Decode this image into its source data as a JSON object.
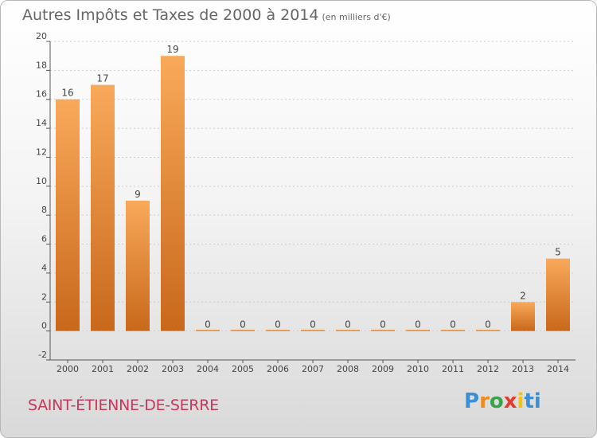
{
  "header": {
    "title": "Autres Impôts et Taxes de 2000 à 2014",
    "subtitle": "(en milliers d'€)"
  },
  "footer": {
    "commune": "SAINT-ÉTIENNE-DE-SERRE",
    "logo_text": "Proxiti"
  },
  "colors": {
    "bar_top": "#f9a95a",
    "bar_bottom": "#c8681b",
    "axis": "#555555",
    "grid": "#cccccc",
    "text": "#444444"
  },
  "chart_data": {
    "type": "bar",
    "title": "Autres Impôts et Taxes de 2000 à 2014",
    "subtitle": "(en milliers d'€)",
    "categories": [
      "2000",
      "2001",
      "2002",
      "2003",
      "2004",
      "2005",
      "2006",
      "2007",
      "2008",
      "2009",
      "2010",
      "2011",
      "2012",
      "2013",
      "2014"
    ],
    "values": [
      16,
      17,
      9,
      19,
      0,
      0,
      0,
      0,
      0,
      0,
      0,
      0,
      0,
      2,
      5
    ],
    "data_labels": [
      "16",
      "17",
      "9",
      "19",
      "0",
      "0",
      "0",
      "0",
      "0",
      "0",
      "0",
      "0",
      "0",
      "2",
      "5"
    ],
    "xlabel": "",
    "ylabel": "",
    "ylim": [
      -2,
      20
    ],
    "yticks": [
      -2,
      0,
      2,
      4,
      6,
      8,
      10,
      12,
      14,
      16,
      18,
      20
    ],
    "grid": true,
    "legend": "none"
  }
}
